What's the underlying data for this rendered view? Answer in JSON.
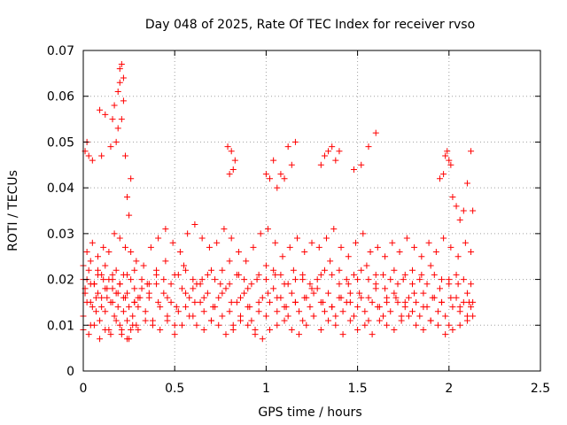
{
  "chart_data": {
    "type": "scatter",
    "title": "Day 048 of 2025, Rate Of TEC Index for receiver rvso",
    "xlabel": "GPS time / hours",
    "ylabel": "ROTI / TECUs",
    "xlim": [
      0,
      2.5
    ],
    "ylim": [
      0,
      0.07
    ],
    "x_ticks": [
      "0",
      "0.5",
      "1",
      "1.5",
      "2",
      "2.5"
    ],
    "x_tick_values": [
      0,
      0.5,
      1,
      1.5,
      2,
      2.5
    ],
    "y_ticks": [
      "0",
      "0.01",
      "0.02",
      "0.03",
      "0.04",
      "0.05",
      "0.06",
      "0.07"
    ],
    "y_tick_values": [
      0,
      0.01,
      0.02,
      0.03,
      0.04,
      0.05,
      0.06,
      0.07
    ],
    "grid": true,
    "marker": "+",
    "marker_color": "#ff0000",
    "series": [
      {
        "x": [
          0.0,
          0.01,
          0.02,
          0.03,
          0.04,
          0.05,
          0.06,
          0.07,
          0.08,
          0.09,
          0.1,
          0.11,
          0.12,
          0.13,
          0.14,
          0.15,
          0.16,
          0.17,
          0.18,
          0.19,
          0.2,
          0.21,
          0.22,
          0.23,
          0.24,
          0.25,
          0.26,
          0.27,
          0.28,
          0.29,
          0.3,
          0.32,
          0.34,
          0.36,
          0.38,
          0.4,
          0.42,
          0.44,
          0.46,
          0.48,
          0.5,
          0.52,
          0.54,
          0.56,
          0.58,
          0.6,
          0.62,
          0.64,
          0.66,
          0.68,
          0.7,
          0.72,
          0.74,
          0.76,
          0.78,
          0.8,
          0.82,
          0.84,
          0.86,
          0.88,
          0.9,
          0.92,
          0.94,
          0.96,
          0.98,
          1.0,
          1.02,
          1.04,
          1.06,
          1.08,
          1.1,
          1.12,
          1.14,
          1.16,
          1.18,
          1.2,
          1.22,
          1.24,
          1.26,
          1.28,
          1.3,
          1.32,
          1.34,
          1.36,
          1.38,
          1.4,
          1.42,
          1.44,
          1.46,
          1.48,
          1.5,
          1.52,
          1.54,
          1.56,
          1.58,
          1.6,
          1.62,
          1.64,
          1.66,
          1.68,
          1.7,
          1.72,
          1.74,
          1.76,
          1.78,
          1.8,
          1.82,
          1.84,
          1.86,
          1.88,
          1.9,
          1.92,
          1.94,
          1.96,
          1.98,
          2.0,
          2.02,
          2.04,
          2.06,
          2.08,
          2.1,
          2.12,
          0.0,
          0.02,
          0.04,
          0.06,
          0.08,
          0.1,
          0.12,
          0.14,
          0.16,
          0.18,
          0.2,
          0.22,
          0.24,
          0.26,
          0.28,
          0.3,
          0.35,
          0.4,
          0.45,
          0.5,
          0.55,
          0.6,
          0.65,
          0.7,
          0.75,
          0.8,
          0.85,
          0.9,
          0.95,
          1.0,
          1.05,
          1.1,
          1.15,
          1.2,
          1.25,
          1.3,
          1.35,
          1.4,
          1.45,
          1.5,
          1.55,
          1.6,
          1.65,
          1.7,
          1.75,
          1.8,
          1.85,
          1.9,
          1.95,
          2.0,
          2.05,
          2.1,
          2.13,
          0.0,
          0.03,
          0.06,
          0.09,
          0.12,
          0.15,
          0.18,
          0.21,
          0.24,
          0.27,
          0.3,
          0.34,
          0.38,
          0.42,
          0.46,
          0.5,
          0.54,
          0.58,
          0.62,
          0.66,
          0.7,
          0.74,
          0.78,
          0.82,
          0.86,
          0.9,
          0.94,
          0.98,
          1.02,
          1.06,
          1.1,
          1.14,
          1.18,
          1.22,
          1.26,
          1.3,
          1.34,
          1.38,
          1.42,
          1.46,
          1.5,
          1.54,
          1.58,
          1.62,
          1.66,
          1.7,
          1.74,
          1.78,
          1.82,
          1.86,
          1.9,
          1.94,
          1.98,
          2.02,
          2.06,
          2.1,
          2.13,
          0.02,
          0.05,
          0.08,
          0.11,
          0.14,
          0.17,
          0.2,
          0.23,
          0.26,
          0.29,
          0.33,
          0.37,
          0.41,
          0.45,
          0.49,
          0.53,
          0.57,
          0.61,
          0.65,
          0.69,
          0.73,
          0.77,
          0.81,
          0.85,
          0.89,
          0.93,
          0.97,
          1.01,
          1.05,
          1.09,
          1.13,
          1.17,
          1.21,
          1.25,
          1.29,
          1.33,
          1.37,
          1.41,
          1.45,
          1.49,
          1.53,
          1.57,
          1.61,
          1.65,
          1.69,
          1.73,
          1.77,
          1.81,
          1.85,
          1.89,
          1.93,
          1.97,
          2.01,
          2.05,
          2.09,
          2.12,
          0.01,
          0.04,
          0.07,
          0.1,
          0.13,
          0.16,
          0.19,
          0.22,
          0.25,
          0.28,
          0.31,
          0.36,
          0.41,
          0.46,
          0.51,
          0.56,
          0.61,
          0.66,
          0.71,
          0.76,
          0.81,
          0.86,
          0.91,
          0.96,
          1.01,
          1.06,
          1.11,
          1.16,
          1.21,
          1.26,
          1.31,
          1.36,
          1.41,
          1.46,
          1.51,
          1.56,
          1.61,
          1.66,
          1.71,
          1.76,
          1.81,
          1.86,
          1.91,
          1.96,
          2.01,
          2.06,
          2.11,
          0.0,
          0.04,
          0.08,
          0.12,
          0.16,
          0.2,
          0.24,
          0.28,
          0.32,
          0.36,
          0.4,
          0.44,
          0.48,
          0.52,
          0.56,
          0.6,
          0.64,
          0.68,
          0.72,
          0.76,
          0.8,
          0.84,
          0.88,
          0.92,
          0.96,
          1.0,
          1.04,
          1.08,
          1.12,
          1.16,
          1.2,
          1.24,
          1.28,
          1.32,
          1.36,
          1.4,
          1.44,
          1.48,
          1.52,
          1.56,
          1.6,
          1.64,
          1.68,
          1.72,
          1.76,
          1.8,
          1.84,
          1.88,
          1.92,
          1.96,
          2.0,
          2.04,
          2.08,
          2.12,
          0.01,
          0.02,
          0.03,
          0.05,
          0.09,
          0.1,
          0.12,
          0.15,
          0.16,
          0.17,
          0.18,
          0.19,
          0.19,
          0.2,
          0.2,
          0.21,
          0.21,
          0.22,
          0.22,
          0.23,
          0.24,
          0.25,
          0.26,
          0.79,
          0.8,
          0.81,
          0.82,
          0.83,
          1.0,
          1.02,
          1.04,
          1.06,
          1.08,
          1.1,
          1.12,
          1.14,
          1.16,
          1.3,
          1.32,
          1.34,
          1.36,
          1.38,
          1.4,
          1.48,
          1.52,
          1.56,
          1.6,
          1.95,
          1.97,
          1.98,
          1.99,
          2.0,
          2.01,
          2.02,
          2.04,
          2.06,
          2.08,
          2.1,
          2.12,
          2.13
        ],
        "y": [
          0.012,
          0.018,
          0.015,
          0.022,
          0.01,
          0.014,
          0.019,
          0.013,
          0.017,
          0.011,
          0.016,
          0.02,
          0.013,
          0.018,
          0.009,
          0.015,
          0.021,
          0.012,
          0.017,
          0.014,
          0.01,
          0.008,
          0.013,
          0.016,
          0.011,
          0.007,
          0.009,
          0.012,
          0.015,
          0.01,
          0.014,
          0.018,
          0.013,
          0.016,
          0.011,
          0.019,
          0.014,
          0.017,
          0.012,
          0.015,
          0.01,
          0.013,
          0.018,
          0.014,
          0.016,
          0.012,
          0.019,
          0.015,
          0.013,
          0.017,
          0.011,
          0.014,
          0.016,
          0.012,
          0.018,
          0.013,
          0.01,
          0.015,
          0.012,
          0.017,
          0.014,
          0.011,
          0.009,
          0.013,
          0.016,
          0.012,
          0.015,
          0.018,
          0.013,
          0.016,
          0.014,
          0.012,
          0.017,
          0.015,
          0.013,
          0.011,
          0.016,
          0.014,
          0.012,
          0.018,
          0.015,
          0.013,
          0.017,
          0.014,
          0.012,
          0.016,
          0.013,
          0.015,
          0.017,
          0.012,
          0.014,
          0.016,
          0.013,
          0.011,
          0.015,
          0.018,
          0.014,
          0.012,
          0.016,
          0.013,
          0.017,
          0.015,
          0.012,
          0.014,
          0.016,
          0.013,
          0.015,
          0.012,
          0.017,
          0.014,
          0.011,
          0.016,
          0.013,
          0.015,
          0.012,
          0.01,
          0.014,
          0.016,
          0.013,
          0.015,
          0.012,
          0.014,
          0.023,
          0.02,
          0.024,
          0.019,
          0.022,
          0.021,
          0.023,
          0.02,
          0.018,
          0.022,
          0.019,
          0.021,
          0.017,
          0.02,
          0.018,
          0.016,
          0.019,
          0.022,
          0.024,
          0.021,
          0.023,
          0.018,
          0.02,
          0.022,
          0.019,
          0.024,
          0.021,
          0.018,
          0.02,
          0.023,
          0.021,
          0.019,
          0.022,
          0.02,
          0.018,
          0.021,
          0.024,
          0.022,
          0.019,
          0.02,
          0.023,
          0.021,
          0.018,
          0.022,
          0.02,
          0.019,
          0.021,
          0.023,
          0.018,
          0.02,
          0.019,
          0.017,
          0.015,
          0.009,
          0.008,
          0.01,
          0.007,
          0.009,
          0.008,
          0.011,
          0.009,
          0.007,
          0.01,
          0.009,
          0.011,
          0.01,
          0.009,
          0.011,
          0.008,
          0.01,
          0.012,
          0.01,
          0.009,
          0.011,
          0.01,
          0.008,
          0.009,
          0.011,
          0.01,
          0.008,
          0.007,
          0.009,
          0.01,
          0.011,
          0.009,
          0.008,
          0.01,
          0.012,
          0.009,
          0.011,
          0.01,
          0.008,
          0.011,
          0.009,
          0.01,
          0.008,
          0.011,
          0.01,
          0.009,
          0.011,
          0.012,
          0.01,
          0.009,
          0.011,
          0.01,
          0.008,
          0.009,
          0.01,
          0.011,
          0.012,
          0.026,
          0.028,
          0.025,
          0.027,
          0.026,
          0.03,
          0.029,
          0.027,
          0.026,
          0.024,
          0.023,
          0.027,
          0.029,
          0.031,
          0.028,
          0.026,
          0.03,
          0.032,
          0.029,
          0.027,
          0.028,
          0.031,
          0.029,
          0.026,
          0.024,
          0.027,
          0.03,
          0.031,
          0.028,
          0.025,
          0.027,
          0.029,
          0.026,
          0.028,
          0.027,
          0.029,
          0.031,
          0.027,
          0.025,
          0.028,
          0.03,
          0.026,
          0.027,
          0.025,
          0.028,
          0.026,
          0.029,
          0.027,
          0.025,
          0.028,
          0.026,
          0.029,
          0.027,
          0.025,
          0.028,
          0.026,
          0.017,
          0.015,
          0.016,
          0.014,
          0.016,
          0.015,
          0.017,
          0.016,
          0.014,
          0.015,
          0.016,
          0.017,
          0.015,
          0.016,
          0.014,
          0.017,
          0.015,
          0.016,
          0.014,
          0.017,
          0.015,
          0.016,
          0.014,
          0.015,
          0.017,
          0.016,
          0.014,
          0.015,
          0.016,
          0.017,
          0.015,
          0.014,
          0.016,
          0.015,
          0.017,
          0.016,
          0.014,
          0.015,
          0.016,
          0.015,
          0.017,
          0.014,
          0.016,
          0.015,
          0.016,
          0.014,
          0.015,
          0.02,
          0.019,
          0.021,
          0.018,
          0.02,
          0.019,
          0.021,
          0.022,
          0.02,
          0.019,
          0.021,
          0.02,
          0.019,
          0.021,
          0.022,
          0.02,
          0.019,
          0.021,
          0.02,
          0.022,
          0.019,
          0.021,
          0.02,
          0.019,
          0.021,
          0.02,
          0.022,
          0.021,
          0.019,
          0.02,
          0.021,
          0.019,
          0.02,
          0.022,
          0.021,
          0.019,
          0.02,
          0.021,
          0.022,
          0.02,
          0.019,
          0.021,
          0.02,
          0.019,
          0.021,
          0.022,
          0.02,
          0.019,
          0.021,
          0.02,
          0.019,
          0.021,
          0.02,
          0.019,
          0.048,
          0.05,
          0.047,
          0.046,
          0.057,
          0.047,
          0.056,
          0.049,
          0.055,
          0.058,
          0.05,
          0.053,
          0.061,
          0.063,
          0.066,
          0.067,
          0.055,
          0.059,
          0.064,
          0.047,
          0.038,
          0.034,
          0.042,
          0.049,
          0.043,
          0.048,
          0.044,
          0.046,
          0.043,
          0.042,
          0.046,
          0.04,
          0.043,
          0.042,
          0.049,
          0.045,
          0.05,
          0.045,
          0.047,
          0.048,
          0.049,
          0.046,
          0.048,
          0.044,
          0.045,
          0.049,
          0.052,
          0.042,
          0.043,
          0.047,
          0.048,
          0.046,
          0.045,
          0.038,
          0.036,
          0.033,
          0.035,
          0.041,
          0.048,
          0.035
        ]
      }
    ]
  }
}
